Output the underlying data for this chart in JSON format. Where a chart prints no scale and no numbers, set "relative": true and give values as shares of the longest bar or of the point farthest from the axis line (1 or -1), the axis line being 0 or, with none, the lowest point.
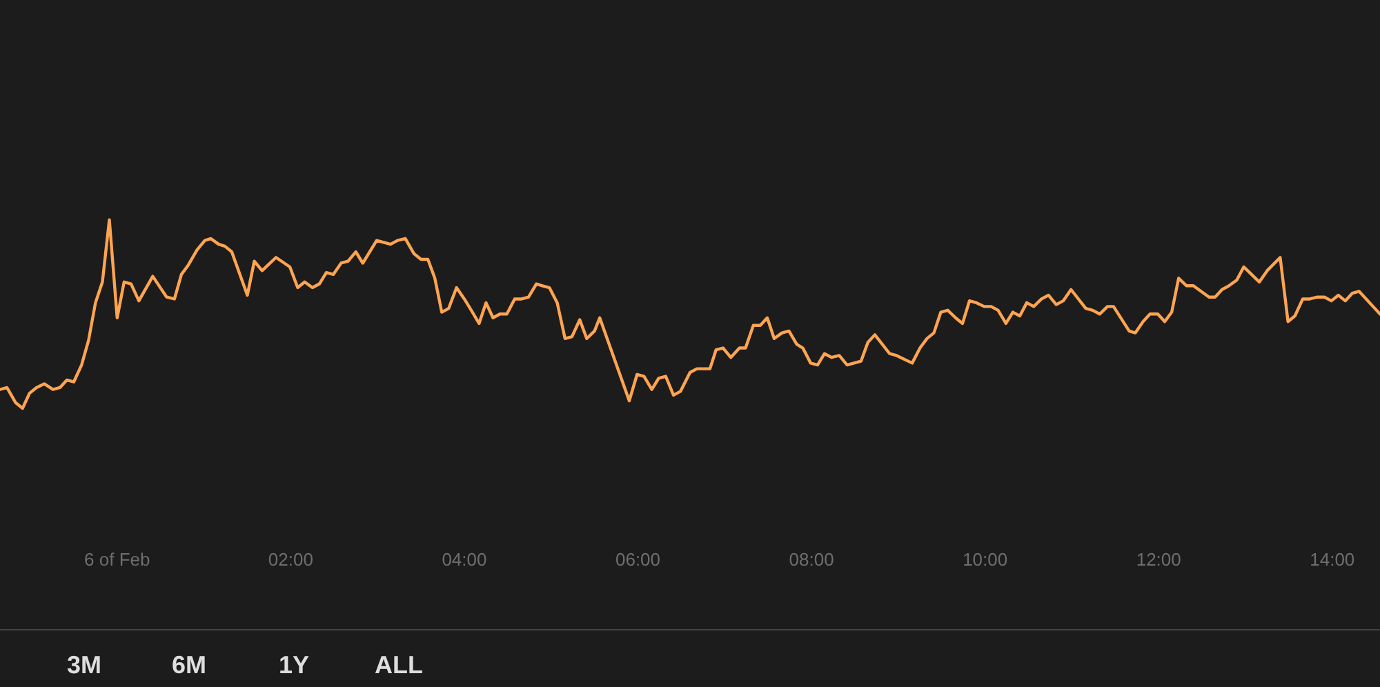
{
  "chart_data": {
    "type": "line",
    "relative": true,
    "x": [
      -1.35,
      -1.27,
      -1.17,
      -1.09,
      -1.01,
      -0.93,
      -0.84,
      -0.74,
      -0.66,
      -0.58,
      -0.5,
      -0.41,
      -0.33,
      -0.25,
      -0.17,
      -0.09,
      0.0,
      0.08,
      0.16,
      0.25,
      0.41,
      0.57,
      0.66,
      0.74,
      0.82,
      0.92,
      1.01,
      1.08,
      1.17,
      1.24,
      1.32,
      1.5,
      1.58,
      1.67,
      1.83,
      1.99,
      2.08,
      2.16,
      2.25,
      2.33,
      2.41,
      2.49,
      2.58,
      2.66,
      2.75,
      2.83,
      2.99,
      3.15,
      3.23,
      3.32,
      3.42,
      3.5,
      3.58,
      3.66,
      3.74,
      3.82,
      3.91,
      4.0,
      4.08,
      4.17,
      4.25,
      4.33,
      4.41,
      4.49,
      4.58,
      4.66,
      4.74,
      4.83,
      4.9,
      4.98,
      5.07,
      5.16,
      5.24,
      5.33,
      5.41,
      5.5,
      5.56,
      5.9,
      5.99,
      6.07,
      6.16,
      6.24,
      6.32,
      6.41,
      6.49,
      6.6,
      6.68,
      6.76,
      6.83,
      6.9,
      6.98,
      7.07,
      7.17,
      7.24,
      7.33,
      7.41,
      7.49,
      7.57,
      7.66,
      7.74,
      7.83,
      7.9,
      7.99,
      8.07,
      8.15,
      8.23,
      8.32,
      8.41,
      8.49,
      8.57,
      8.65,
      8.73,
      8.9,
      8.98,
      9.16,
      9.25,
      9.33,
      9.41,
      9.49,
      9.57,
      9.66,
      9.74,
      9.82,
      9.9,
      9.99,
      10.07,
      10.15,
      10.24,
      10.32,
      10.4,
      10.48,
      10.56,
      10.65,
      10.73,
      10.82,
      10.9,
      10.99,
      11.16,
      11.24,
      11.32,
      11.41,
      11.48,
      11.66,
      11.73,
      11.82,
      11.9,
      11.99,
      12.07,
      12.15,
      12.23,
      12.32,
      12.4,
      12.49,
      12.58,
      12.65,
      12.73,
      12.81,
      12.9,
      12.98,
      13.07,
      13.16,
      13.25,
      13.4,
      13.49,
      13.57,
      13.66,
      13.74,
      13.83,
      13.91,
      13.99,
      14.07,
      14.15,
      14.23,
      14.31,
      14.55
    ],
    "series": [
      {
        "color": "#ffa450",
        "values": [
          0.1,
          0.11,
          0.03,
          0,
          0.08,
          0.11,
          0.13,
          0.1,
          0.11,
          0.15,
          0.14,
          0.23,
          0.36,
          0.56,
          0.67,
          1.0,
          0.48,
          0.67,
          0.66,
          0.57,
          0.7,
          0.59,
          0.58,
          0.71,
          0.76,
          0.84,
          0.89,
          0.9,
          0.87,
          0.86,
          0.83,
          0.6,
          0.78,
          0.73,
          0.8,
          0.75,
          0.64,
          0.67,
          0.64,
          0.66,
          0.72,
          0.71,
          0.77,
          0.78,
          0.83,
          0.77,
          0.89,
          0.87,
          0.89,
          0.9,
          0.82,
          0.79,
          0.79,
          0.69,
          0.51,
          0.53,
          0.64,
          0.58,
          0.52,
          0.45,
          0.56,
          0.48,
          0.5,
          0.5,
          0.58,
          0.58,
          0.59,
          0.66,
          0.65,
          0.64,
          0.56,
          0.37,
          0.38,
          0.47,
          0.37,
          0.41,
          0.48,
          0.04,
          0.18,
          0.17,
          0.1,
          0.16,
          0.17,
          0.07,
          0.09,
          0.19,
          0.21,
          0.21,
          0.21,
          0.31,
          0.32,
          0.27,
          0.32,
          0.32,
          0.44,
          0.44,
          0.48,
          0.37,
          0.4,
          0.41,
          0.34,
          0.32,
          0.24,
          0.23,
          0.29,
          0.27,
          0.28,
          0.23,
          0.24,
          0.25,
          0.35,
          0.39,
          0.29,
          0.28,
          0.24,
          0.32,
          0.37,
          0.4,
          0.51,
          0.52,
          0.48,
          0.45,
          0.57,
          0.56,
          0.54,
          0.54,
          0.52,
          0.45,
          0.51,
          0.49,
          0.56,
          0.54,
          0.58,
          0.6,
          0.55,
          0.57,
          0.63,
          0.53,
          0.52,
          0.5,
          0.54,
          0.54,
          0.41,
          0.4,
          0.46,
          0.5,
          0.5,
          0.46,
          0.51,
          0.69,
          0.65,
          0.65,
          0.62,
          0.59,
          0.59,
          0.63,
          0.65,
          0.68,
          0.75,
          0.71,
          0.67,
          0.73,
          0.8,
          0.46,
          0.49,
          0.58,
          0.58,
          0.59,
          0.59,
          0.57,
          0.6,
          0.57,
          0.61,
          0.62,
          0.5
        ]
      }
    ],
    "xlim": [
      -1.35,
      14.55
    ],
    "xticks": [
      {
        "value": 0,
        "label": "6 of Feb"
      },
      {
        "value": 2,
        "label": "02:00"
      },
      {
        "value": 4,
        "label": "04:00"
      },
      {
        "value": 6,
        "label": "06:00"
      },
      {
        "value": 8,
        "label": "08:00"
      },
      {
        "value": 10,
        "label": "10:00"
      },
      {
        "value": 12,
        "label": "12:00"
      },
      {
        "value": 14,
        "label": "14:00"
      }
    ],
    "grid": false,
    "marker": "none",
    "line_style": "solid",
    "annotations": [
      "3M",
      "6M",
      "1Y",
      "ALL"
    ]
  }
}
